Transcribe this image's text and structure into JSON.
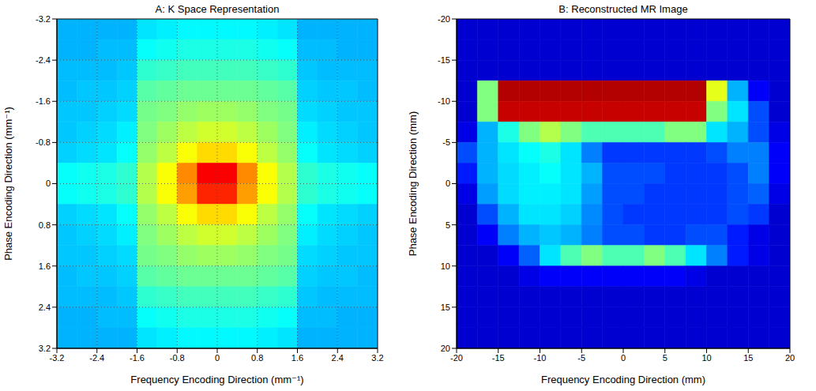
{
  "chart_data": [
    {
      "type": "heatmap",
      "title": "A: K Space Representation",
      "x_label": "Frequency Encoding Direction (mm⁻¹)",
      "y_label": "Phase Encoding Direction (mm⁻¹)",
      "xlim": [
        -3.2,
        3.2
      ],
      "xticks": [
        -3.2,
        -2.4,
        -1.6,
        -0.8,
        0,
        0.8,
        1.6,
        2.4,
        3.2
      ],
      "ylim": [
        3.2,
        -3.2
      ],
      "yticks": [
        -3.2,
        -2.4,
        -1.6,
        -0.8,
        0,
        0.8,
        1.6,
        2.4,
        3.2
      ],
      "grid": true,
      "cell_range": [
        0,
        1
      ],
      "cells": [
        [
          0.3,
          0.3,
          0.3,
          0.3,
          0.35,
          0.36,
          0.37,
          0.37,
          0.37,
          0.37,
          0.36,
          0.35,
          0.3,
          0.3,
          0.3,
          0.3
        ],
        [
          0.3,
          0.3,
          0.31,
          0.31,
          0.38,
          0.39,
          0.4,
          0.4,
          0.4,
          0.4,
          0.39,
          0.38,
          0.31,
          0.31,
          0.3,
          0.3
        ],
        [
          0.31,
          0.31,
          0.31,
          0.32,
          0.42,
          0.43,
          0.44,
          0.44,
          0.44,
          0.44,
          0.43,
          0.42,
          0.32,
          0.31,
          0.31,
          0.31
        ],
        [
          0.31,
          0.32,
          0.32,
          0.33,
          0.46,
          0.47,
          0.48,
          0.48,
          0.48,
          0.48,
          0.47,
          0.46,
          0.33,
          0.32,
          0.32,
          0.31
        ],
        [
          0.32,
          0.32,
          0.33,
          0.34,
          0.49,
          0.5,
          0.52,
          0.53,
          0.53,
          0.52,
          0.5,
          0.49,
          0.34,
          0.33,
          0.32,
          0.32
        ],
        [
          0.32,
          0.33,
          0.34,
          0.36,
          0.5,
          0.53,
          0.56,
          0.58,
          0.58,
          0.56,
          0.53,
          0.5,
          0.36,
          0.34,
          0.33,
          0.32
        ],
        [
          0.33,
          0.34,
          0.35,
          0.38,
          0.52,
          0.56,
          0.62,
          0.66,
          0.66,
          0.62,
          0.56,
          0.52,
          0.38,
          0.35,
          0.34,
          0.33
        ],
        [
          0.38,
          0.39,
          0.4,
          0.42,
          0.55,
          0.62,
          0.74,
          0.88,
          0.88,
          0.74,
          0.62,
          0.55,
          0.42,
          0.4,
          0.39,
          0.38
        ],
        [
          0.38,
          0.39,
          0.4,
          0.42,
          0.55,
          0.62,
          0.72,
          0.84,
          0.84,
          0.72,
          0.62,
          0.55,
          0.42,
          0.4,
          0.39,
          0.38
        ],
        [
          0.33,
          0.34,
          0.35,
          0.38,
          0.52,
          0.56,
          0.62,
          0.66,
          0.66,
          0.62,
          0.56,
          0.52,
          0.38,
          0.35,
          0.34,
          0.33
        ],
        [
          0.32,
          0.33,
          0.34,
          0.36,
          0.5,
          0.53,
          0.56,
          0.58,
          0.58,
          0.56,
          0.53,
          0.5,
          0.36,
          0.34,
          0.33,
          0.32
        ],
        [
          0.32,
          0.32,
          0.33,
          0.34,
          0.49,
          0.5,
          0.52,
          0.53,
          0.53,
          0.52,
          0.5,
          0.49,
          0.34,
          0.33,
          0.32,
          0.32
        ],
        [
          0.31,
          0.32,
          0.32,
          0.33,
          0.46,
          0.47,
          0.48,
          0.48,
          0.48,
          0.48,
          0.47,
          0.46,
          0.33,
          0.32,
          0.32,
          0.31
        ],
        [
          0.31,
          0.31,
          0.31,
          0.32,
          0.42,
          0.43,
          0.44,
          0.44,
          0.44,
          0.44,
          0.43,
          0.42,
          0.32,
          0.31,
          0.31,
          0.31
        ],
        [
          0.3,
          0.3,
          0.31,
          0.31,
          0.38,
          0.39,
          0.4,
          0.4,
          0.4,
          0.4,
          0.39,
          0.38,
          0.31,
          0.31,
          0.3,
          0.3
        ],
        [
          0.3,
          0.3,
          0.3,
          0.3,
          0.35,
          0.36,
          0.37,
          0.37,
          0.37,
          0.37,
          0.36,
          0.35,
          0.3,
          0.3,
          0.3,
          0.3
        ]
      ]
    },
    {
      "type": "heatmap",
      "title": "B: Reconstructed MR Image",
      "x_label": "Frequency Encoding Direction (mm)",
      "y_label": "Phase Encoding Direction (mm)",
      "xlim": [
        -20,
        20
      ],
      "xticks": [
        -20,
        -15,
        -10,
        -5,
        0,
        5,
        10,
        15,
        20
      ],
      "ylim": [
        20,
        -20
      ],
      "yticks": [
        -20,
        -15,
        -10,
        -5,
        0,
        5,
        10,
        15,
        20
      ],
      "grid": false,
      "cell_range": [
        0,
        1
      ],
      "cells": [
        [
          0.08,
          0.08,
          0.08,
          0.08,
          0.08,
          0.08,
          0.08,
          0.08,
          0.08,
          0.08,
          0.08,
          0.08,
          0.08,
          0.08,
          0.08,
          0.08
        ],
        [
          0.08,
          0.08,
          0.08,
          0.08,
          0.08,
          0.08,
          0.08,
          0.08,
          0.08,
          0.08,
          0.08,
          0.08,
          0.08,
          0.08,
          0.08,
          0.08
        ],
        [
          0.08,
          0.08,
          0.08,
          0.08,
          0.08,
          0.08,
          0.08,
          0.08,
          0.08,
          0.08,
          0.08,
          0.08,
          0.08,
          0.08,
          0.08,
          0.08
        ],
        [
          0.08,
          0.5,
          0.95,
          0.95,
          0.95,
          0.95,
          0.95,
          0.95,
          0.95,
          0.95,
          0.95,
          0.95,
          0.6,
          0.3,
          0.12,
          0.08
        ],
        [
          0.08,
          0.5,
          0.93,
          0.93,
          0.93,
          0.93,
          0.93,
          0.93,
          0.93,
          0.93,
          0.93,
          0.93,
          0.5,
          0.35,
          0.2,
          0.08
        ],
        [
          0.1,
          0.3,
          0.4,
          0.5,
          0.55,
          0.5,
          0.45,
          0.45,
          0.45,
          0.45,
          0.5,
          0.5,
          0.35,
          0.3,
          0.2,
          0.1
        ],
        [
          0.2,
          0.3,
          0.35,
          0.38,
          0.4,
          0.35,
          0.25,
          0.18,
          0.18,
          0.18,
          0.18,
          0.18,
          0.2,
          0.25,
          0.25,
          0.12
        ],
        [
          0.15,
          0.3,
          0.34,
          0.36,
          0.38,
          0.35,
          0.3,
          0.2,
          0.2,
          0.2,
          0.18,
          0.18,
          0.18,
          0.2,
          0.25,
          0.12
        ],
        [
          0.1,
          0.28,
          0.34,
          0.36,
          0.36,
          0.35,
          0.28,
          0.2,
          0.2,
          0.18,
          0.18,
          0.18,
          0.18,
          0.2,
          0.22,
          0.1
        ],
        [
          0.08,
          0.2,
          0.3,
          0.35,
          0.35,
          0.33,
          0.26,
          0.2,
          0.18,
          0.18,
          0.18,
          0.18,
          0.18,
          0.2,
          0.18,
          0.08
        ],
        [
          0.08,
          0.12,
          0.25,
          0.3,
          0.32,
          0.3,
          0.25,
          0.2,
          0.2,
          0.18,
          0.18,
          0.2,
          0.2,
          0.15,
          0.1,
          0.08
        ],
        [
          0.08,
          0.08,
          0.12,
          0.22,
          0.35,
          0.45,
          0.5,
          0.45,
          0.45,
          0.5,
          0.45,
          0.35,
          0.25,
          0.15,
          0.1,
          0.08
        ],
        [
          0.08,
          0.08,
          0.08,
          0.1,
          0.12,
          0.12,
          0.12,
          0.12,
          0.12,
          0.12,
          0.12,
          0.1,
          0.08,
          0.08,
          0.08,
          0.08
        ],
        [
          0.08,
          0.08,
          0.08,
          0.08,
          0.08,
          0.08,
          0.08,
          0.08,
          0.08,
          0.08,
          0.08,
          0.08,
          0.08,
          0.08,
          0.08,
          0.08
        ],
        [
          0.08,
          0.08,
          0.08,
          0.08,
          0.08,
          0.08,
          0.08,
          0.08,
          0.08,
          0.08,
          0.08,
          0.08,
          0.08,
          0.08,
          0.08,
          0.08
        ],
        [
          0.08,
          0.08,
          0.08,
          0.08,
          0.08,
          0.08,
          0.08,
          0.08,
          0.08,
          0.08,
          0.08,
          0.08,
          0.08,
          0.08,
          0.08,
          0.08
        ]
      ]
    }
  ]
}
